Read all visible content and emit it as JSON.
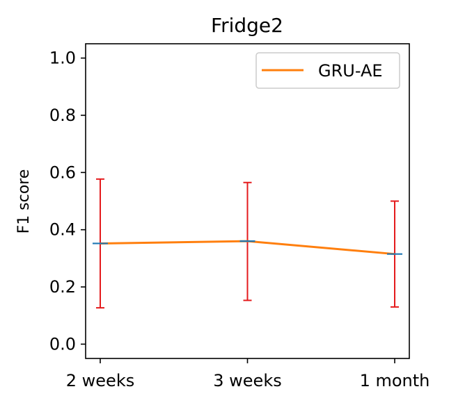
{
  "chart_data": {
    "type": "line",
    "title": "Fridge2",
    "xlabel": "",
    "ylabel": "F1 score",
    "categories": [
      "2 weeks",
      "3 weeks",
      "1 month"
    ],
    "ylim": [
      -0.05,
      1.05
    ],
    "yticks": [
      "0.0",
      "0.2",
      "0.4",
      "0.6",
      "0.8",
      "1.0"
    ],
    "ytick_values": [
      0.0,
      0.2,
      0.4,
      0.6,
      0.8,
      1.0
    ],
    "series": [
      {
        "name": "GRU-AE",
        "values": [
          0.352,
          0.36,
          0.315
        ],
        "error_low": [
          0.127,
          0.153,
          0.13
        ],
        "error_high": [
          0.577,
          0.565,
          0.5
        ]
      }
    ],
    "legend_position": "top-right",
    "grid": false,
    "colors": {
      "line": "#ff7f0e",
      "errorbar": "#e41a1c",
      "mean_marker": "#1f77b4"
    }
  }
}
